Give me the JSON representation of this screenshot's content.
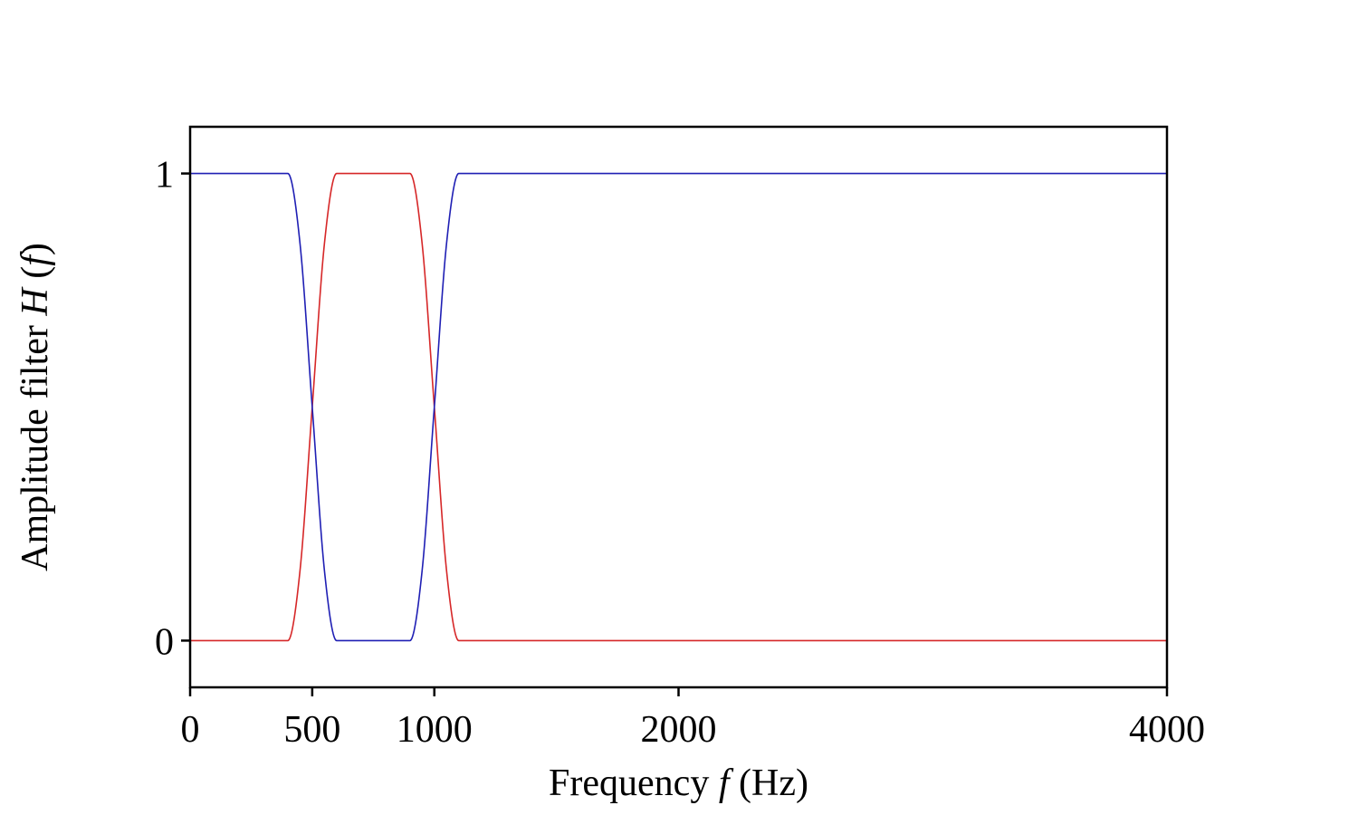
{
  "chart_data": {
    "type": "line",
    "xlabel_parts": [
      "Frequency ",
      "f",
      " (Hz)"
    ],
    "ylabel_parts": [
      "Amplitude filter ",
      "H",
      " (",
      "f",
      ")"
    ],
    "xlim": [
      0,
      4000
    ],
    "ylim": [
      -0.1,
      1.1
    ],
    "x_ticks": [
      0,
      500,
      1000,
      2000,
      4000
    ],
    "x_tick_labels": [
      "0",
      "500",
      "1000",
      "2000",
      "4000"
    ],
    "y_ticks": [
      0,
      1
    ],
    "y_tick_labels": [
      "0",
      "1"
    ],
    "grid": false,
    "legend": "none",
    "series": [
      {
        "color": "#d62728",
        "x": [
          0,
          400,
          450,
          500,
          550,
          600,
          900,
          950,
          1000,
          1050,
          1100,
          4000
        ],
        "values": [
          0,
          0,
          0.15,
          0.5,
          0.85,
          1,
          1,
          0.85,
          0.5,
          0.15,
          0,
          0
        ]
      },
      {
        "color": "#1f1fb4",
        "x": [
          0,
          400,
          450,
          500,
          550,
          600,
          900,
          950,
          1000,
          1050,
          1100,
          4000
        ],
        "values": [
          1,
          1,
          0.85,
          0.5,
          0.15,
          0,
          0,
          0.15,
          0.5,
          0.85,
          1,
          1
        ]
      }
    ]
  }
}
